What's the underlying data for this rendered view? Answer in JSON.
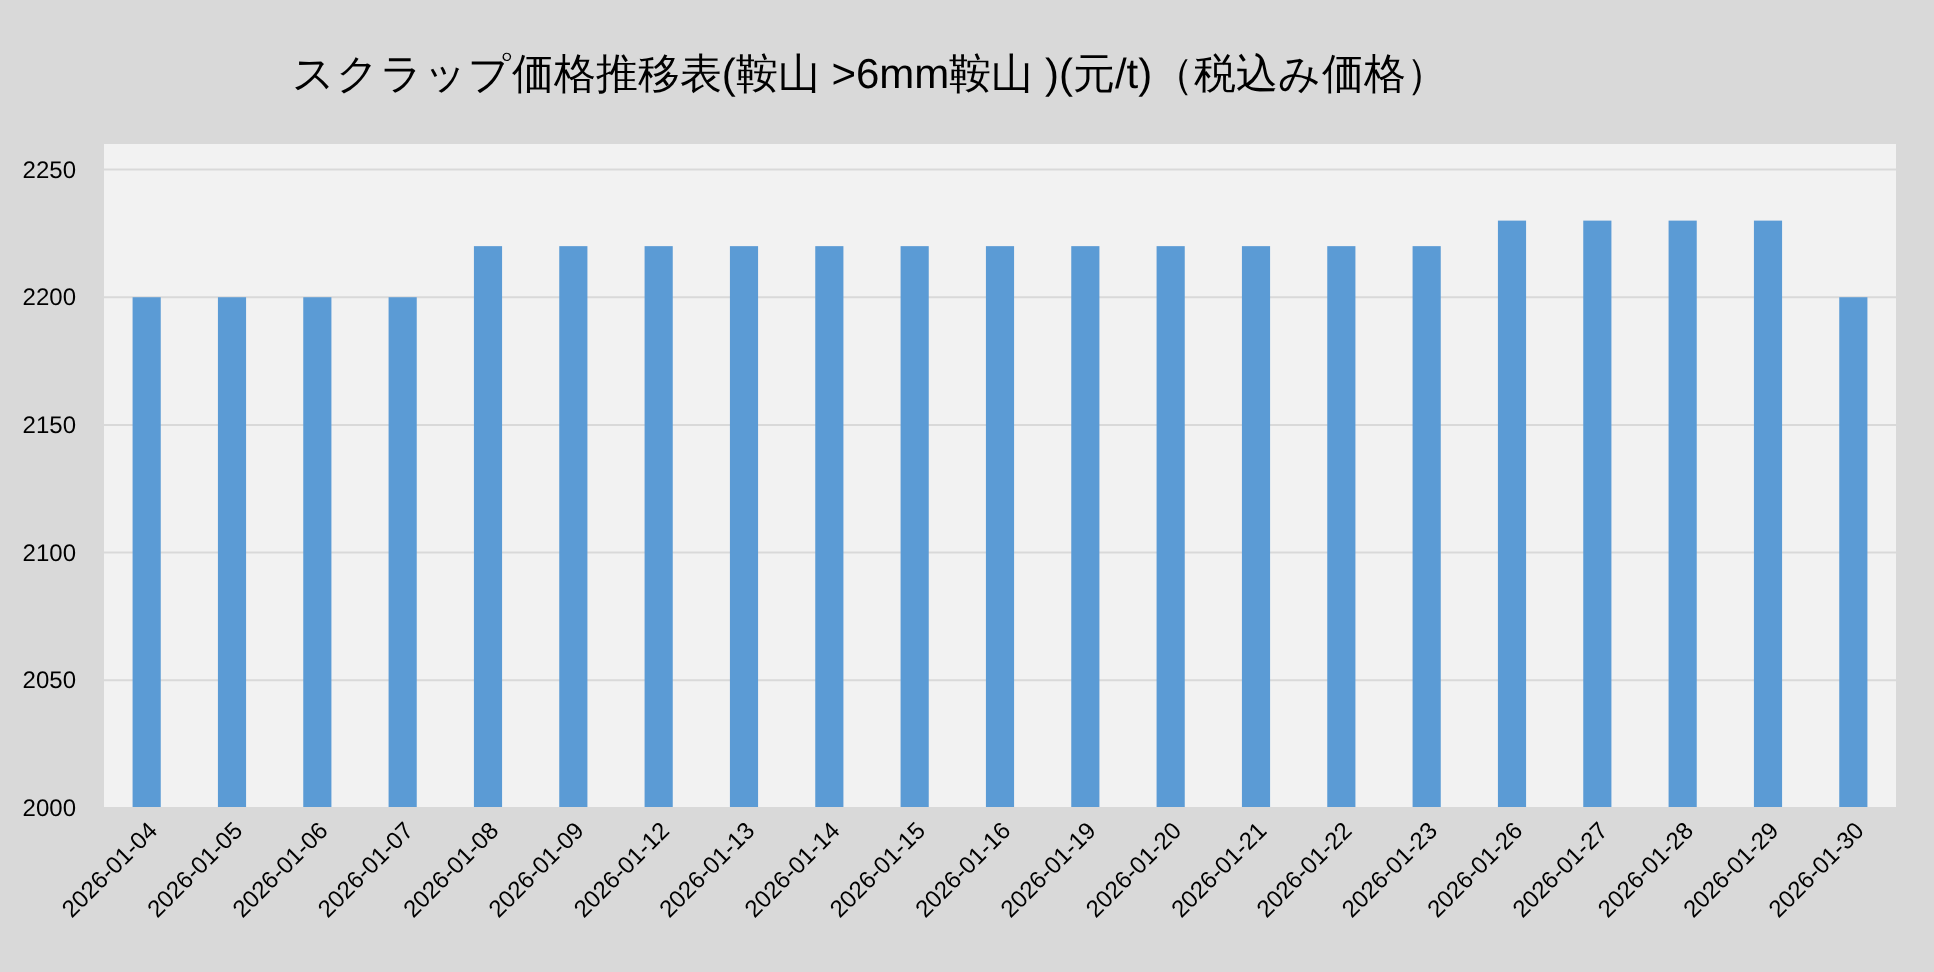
{
  "chart_data": {
    "type": "bar",
    "title": "スクラップ価格推移表(鞍山 >6mm鞍山 )(元/t)（税込み価格）",
    "categories": [
      "2026-01-04",
      "2026-01-05",
      "2026-01-06",
      "2026-01-07",
      "2026-01-08",
      "2026-01-09",
      "2026-01-12",
      "2026-01-13",
      "2026-01-14",
      "2026-01-15",
      "2026-01-16",
      "2026-01-19",
      "2026-01-20",
      "2026-01-21",
      "2026-01-22",
      "2026-01-23",
      "2026-01-26",
      "2026-01-27",
      "2026-01-28",
      "2026-01-29",
      "2026-01-30"
    ],
    "values": [
      2200,
      2200,
      2200,
      2200,
      2220,
      2220,
      2220,
      2220,
      2220,
      2220,
      2220,
      2220,
      2220,
      2220,
      2220,
      2220,
      2230,
      2230,
      2230,
      2230,
      2200
    ],
    "color": "#5b9bd5",
    "ylim": [
      2000,
      2260
    ],
    "yticks": [
      2000,
      2050,
      2100,
      2150,
      2200,
      2250
    ],
    "grid": "y"
  }
}
